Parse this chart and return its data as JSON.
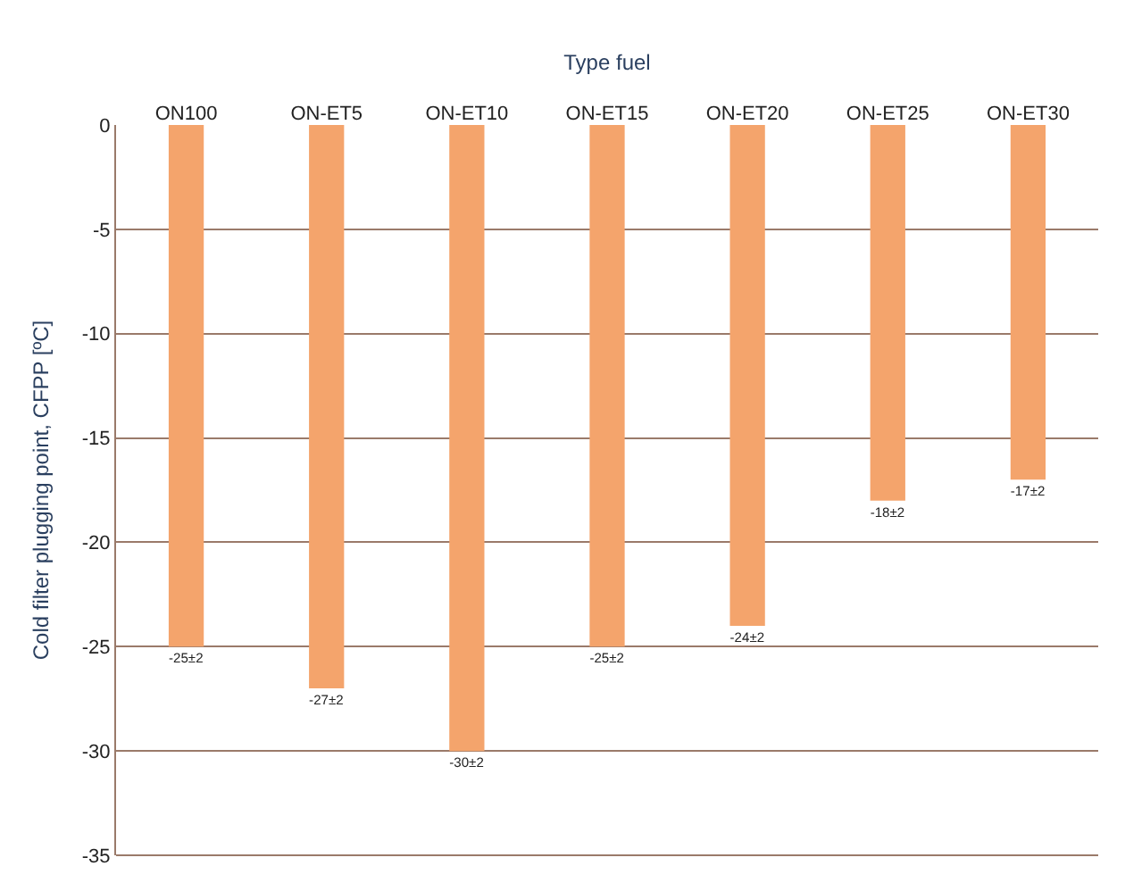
{
  "chart_data": {
    "type": "bar",
    "xlabel": "Type fuel",
    "ylabel": "Cold filter plugging point, CFPP [ºC]",
    "categories": [
      "ON100",
      "ON-ET5",
      "ON-ET10",
      "ON-ET15",
      "ON-ET20",
      "ON-ET25",
      "ON-ET30"
    ],
    "values": [
      -25,
      -27,
      -30,
      -25,
      -24,
      -18,
      -17
    ],
    "value_labels": [
      "-25±2",
      "-27±2",
      "-30±2",
      "-25±2",
      "-24±2",
      "-18±2",
      "-17±2"
    ],
    "color": "#f4a46c",
    "ylim": [
      -35,
      0
    ],
    "yticks": [
      0,
      -5,
      -10,
      -15,
      -20,
      -25,
      -30,
      -35
    ],
    "grid": "y"
  }
}
